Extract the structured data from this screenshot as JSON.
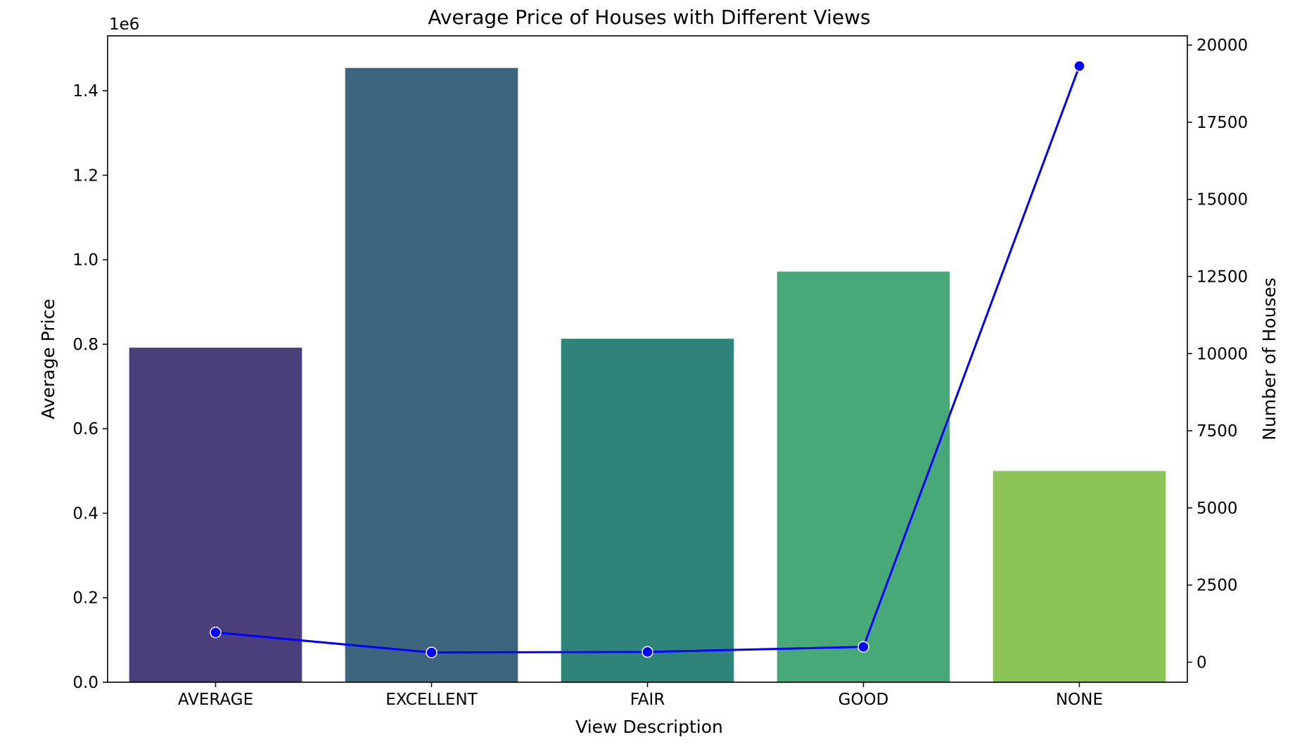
{
  "chart_data": {
    "type": "bar",
    "title": "Average Price of Houses with Different Views",
    "xlabel": "View Description",
    "ylabel": "Average Price",
    "y2label": "Number of Houses",
    "y_offset_label": "1e6",
    "categories": [
      "AVERAGE",
      "EXCELLENT",
      "FAIR",
      "GOOD",
      "NONE"
    ],
    "bar_colors": [
      "#4a3f7a",
      "#3e657e",
      "#2e8479",
      "#47a878",
      "#8dc458"
    ],
    "line_color": "#0000ff",
    "series": [
      {
        "axis": "left",
        "type": "bar",
        "values": [
          792000,
          1454000,
          813000,
          972000,
          500000
        ]
      },
      {
        "axis": "right",
        "type": "line",
        "values": [
          963,
          315,
          332,
          496,
          19320
        ]
      }
    ],
    "ylim": [
      0,
      1.53
    ],
    "y_ticks": [
      0.0,
      0.2,
      0.4,
      0.6,
      0.8,
      1.0,
      1.2,
      1.4
    ],
    "y_tick_labels": [
      "0.0",
      "0.2",
      "0.4",
      "0.6",
      "0.8",
      "1.0",
      "1.2",
      "1.4"
    ],
    "y2lim": [
      -650,
      20300
    ],
    "y2_ticks": [
      0,
      2500,
      5000,
      7500,
      10000,
      12500,
      15000,
      17500,
      20000
    ],
    "y2_tick_labels": [
      "0",
      "2500",
      "5000",
      "7500",
      "10000",
      "12500",
      "15000",
      "17500",
      "20000"
    ],
    "grid": false,
    "legend": "none"
  }
}
